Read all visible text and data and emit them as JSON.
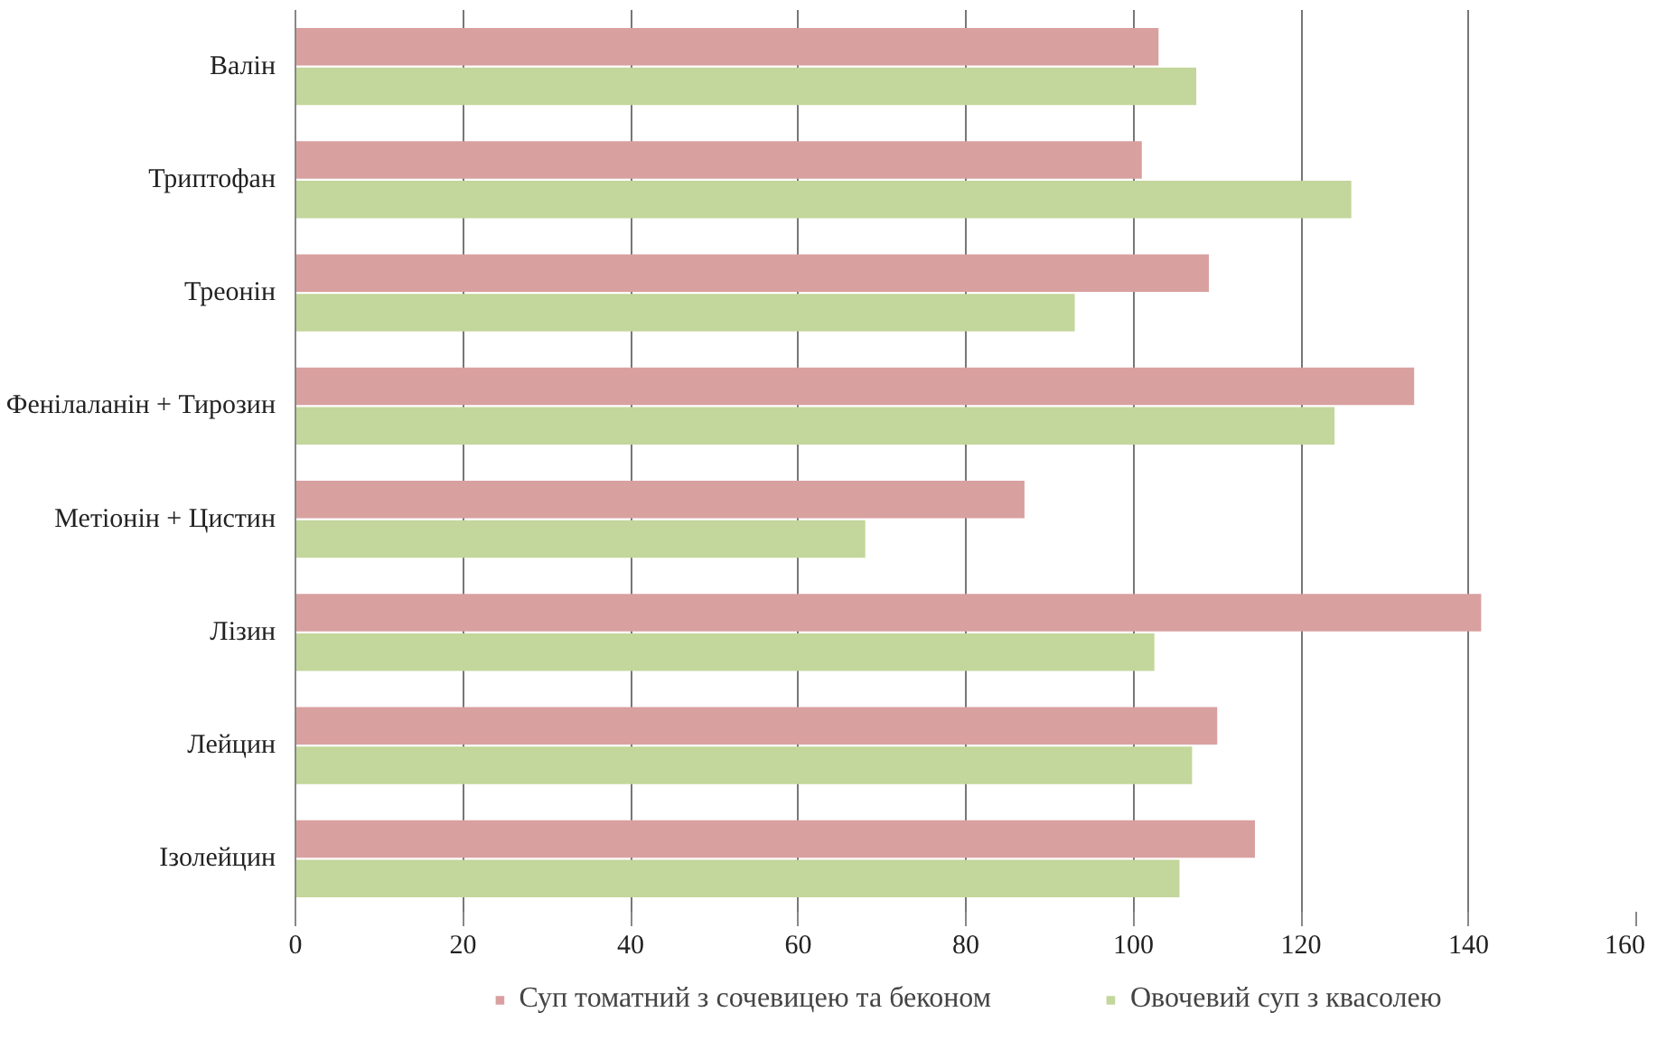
{
  "chart_data": {
    "type": "bar",
    "orientation": "horizontal",
    "categories": [
      "Валін",
      "Триптофан",
      "Треонін",
      "Фенілаланін + Тирозин",
      "Метіонін + Цистин",
      "Лізин",
      "Лейцин",
      "Ізолейцин"
    ],
    "series": [
      {
        "name": "Суп томатний з сочевицею та беконом",
        "color": "#d9a0a0",
        "values": [
          103,
          101,
          109,
          133.5,
          87,
          141.5,
          110,
          114.5
        ]
      },
      {
        "name": "Овочевий суп з квасолею",
        "color": "#c3d69b",
        "values": [
          107.5,
          126,
          93,
          124,
          68,
          102.5,
          107,
          105.5
        ]
      }
    ],
    "xlim": [
      0,
      160
    ],
    "xticks": [
      0,
      20,
      40,
      60,
      80,
      100,
      120,
      140,
      160
    ],
    "grid": "x",
    "legend": "bottom"
  }
}
